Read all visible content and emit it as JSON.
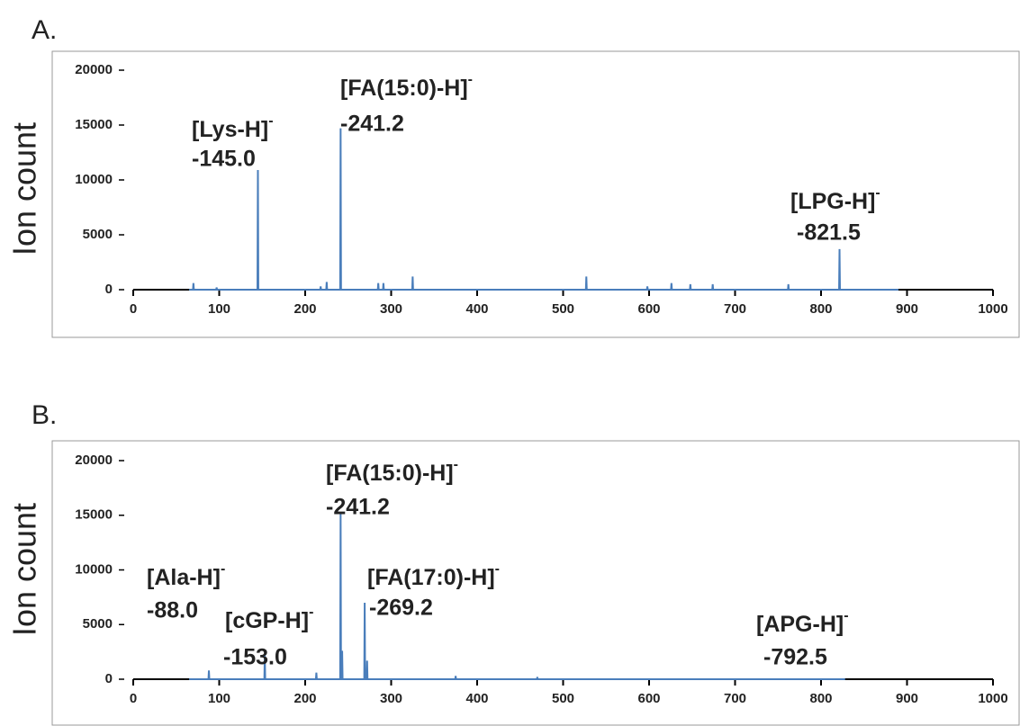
{
  "chart_data": [
    {
      "type": "line",
      "panel_label": "A.",
      "ylabel": "Ion count",
      "color": "#4a7ebb",
      "x": [
        65,
        69.5,
        70,
        70.5,
        96.5,
        97,
        97.5,
        144.5,
        145,
        145.5,
        217.5,
        218,
        218.5,
        224.5,
        225,
        225.5,
        240.7,
        241.2,
        241.7,
        284.5,
        285,
        285.5,
        290.5,
        291,
        291.5,
        324.5,
        325,
        325.5,
        526.5,
        527,
        527.5,
        597.5,
        598,
        598.5,
        625.5,
        626,
        626.5,
        647.5,
        648,
        648.5,
        673.5,
        674,
        674.5,
        761.5,
        762,
        762.5,
        821,
        821.5,
        822,
        890
      ],
      "values": [
        0,
        0,
        600,
        0,
        0,
        200,
        0,
        0,
        10900,
        0,
        0,
        300,
        0,
        0,
        700,
        0,
        0,
        14700,
        0,
        0,
        600,
        0,
        0,
        600,
        0,
        0,
        1200,
        0,
        0,
        1200,
        0,
        0,
        300,
        0,
        0,
        600,
        0,
        0,
        500,
        0,
        0,
        500,
        0,
        0,
        500,
        0,
        0,
        3700,
        0,
        0
      ],
      "xlim": [
        0,
        1000
      ],
      "xticks": [
        0,
        100,
        200,
        300,
        400,
        500,
        600,
        700,
        800,
        900,
        1000
      ],
      "ylim": [
        0,
        20000
      ],
      "yticks": [
        0,
        5000,
        10000,
        15000,
        20000
      ],
      "annotations": [
        {
          "text": "[Lys-H]",
          "charge": "-",
          "mz": "-145.0"
        },
        {
          "text": "[FA(15:0)-H]",
          "charge": "-",
          "mz": "-241.2"
        },
        {
          "text": "[LPG-H]",
          "charge": "-",
          "mz": "-821.5"
        }
      ]
    },
    {
      "type": "line",
      "panel_label": "B.",
      "ylabel": "Ion count",
      "color": "#4a7ebb",
      "x": [
        65,
        87.5,
        88,
        88.5,
        152.5,
        153,
        153.5,
        212.5,
        213,
        213.5,
        240.7,
        241.2,
        241.7,
        242.5,
        243,
        243.5,
        268.7,
        269.2,
        269.7,
        271.5,
        272,
        272.5,
        374.5,
        375,
        375.5,
        469.5,
        470,
        470.5,
        828
      ],
      "values": [
        0,
        0,
        800,
        0,
        0,
        2200,
        0,
        0,
        600,
        0,
        0,
        15300,
        0,
        0,
        2600,
        0,
        0,
        7000,
        0,
        0,
        1700,
        0,
        0,
        300,
        0,
        0,
        200,
        0,
        0
      ],
      "xlim": [
        0,
        1000
      ],
      "xticks": [
        0,
        100,
        200,
        300,
        400,
        500,
        600,
        700,
        800,
        900,
        1000
      ],
      "ylim": [
        0,
        20000
      ],
      "yticks": [
        0,
        5000,
        10000,
        15000,
        20000
      ],
      "annotations": [
        {
          "text": "[FA(15:0)-H]",
          "charge": "-",
          "mz": "-241.2"
        },
        {
          "text": "[Ala-H]",
          "charge": "-",
          "mz": "-88.0"
        },
        {
          "text": "[cGP-H]",
          "charge": "-",
          "mz": "-153.0"
        },
        {
          "text": "[FA(17:0)-H]",
          "charge": "-",
          "mz": "-269.2"
        },
        {
          "text": "[APG-H]",
          "charge": "-",
          "mz": "-792.5"
        }
      ]
    }
  ]
}
